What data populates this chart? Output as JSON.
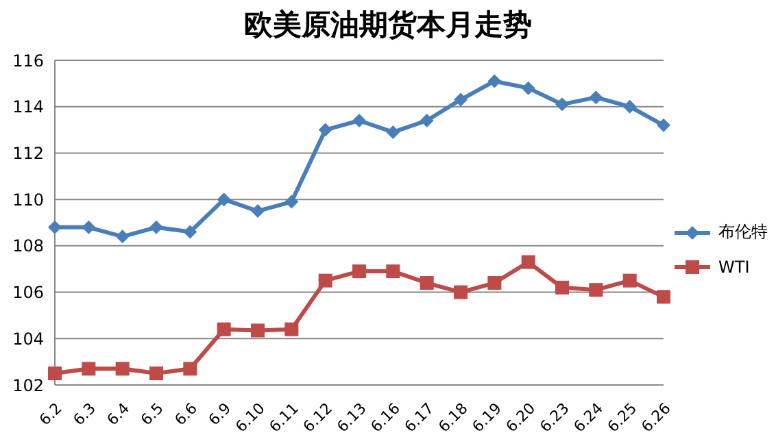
{
  "chart_data": {
    "type": "line",
    "title": "欧美原油期货本月走势",
    "categories": [
      "6.2",
      "6.3",
      "6.4",
      "6.5",
      "6.6",
      "6.9",
      "6.10",
      "6.11",
      "6.12",
      "6.13",
      "6.16",
      "6.17",
      "6.18",
      "6.19",
      "6.20",
      "6.23",
      "6.24",
      "6.25",
      "6.26"
    ],
    "series": [
      {
        "name": "布伦特",
        "color": "#4a7ebb",
        "marker": "diamond",
        "values": [
          108.8,
          108.8,
          108.4,
          108.8,
          108.6,
          110.0,
          109.5,
          109.9,
          113.0,
          113.4,
          112.9,
          113.4,
          114.3,
          115.1,
          114.8,
          114.1,
          114.4,
          114.0,
          113.2
        ]
      },
      {
        "name": "WTI",
        "color": "#be4b48",
        "marker": "square",
        "values": [
          102.5,
          102.7,
          102.7,
          102.5,
          102.7,
          104.4,
          104.35,
          104.4,
          106.5,
          106.9,
          106.9,
          106.4,
          106.0,
          106.4,
          107.3,
          106.2,
          106.1,
          106.5,
          105.8
        ]
      }
    ],
    "ylim": [
      102,
      116
    ],
    "yticks": [
      102,
      104,
      106,
      108,
      110,
      112,
      114,
      116
    ],
    "grid": "y",
    "legend": "right",
    "line_style": "solid"
  }
}
